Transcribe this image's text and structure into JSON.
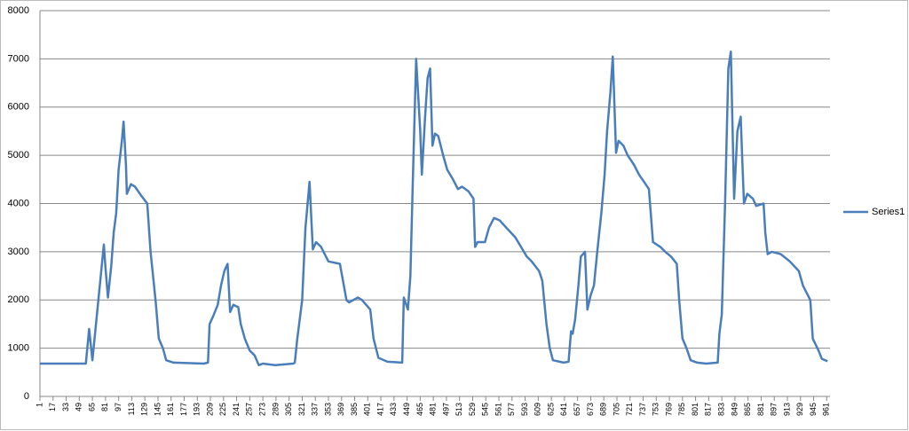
{
  "chart_data": {
    "type": "line",
    "x": [
      1,
      57,
      61,
      65,
      79,
      81,
      84,
      88,
      91,
      94,
      97,
      101,
      103,
      106,
      107,
      112,
      117,
      123,
      132,
      136,
      142,
      146,
      151,
      155,
      164,
      201,
      206,
      208,
      212,
      218,
      222,
      226,
      230,
      233,
      237,
      243,
      246,
      251,
      257,
      263,
      268,
      273,
      288,
      310,
      312,
      315,
      321,
      325,
      330,
      334,
      338,
      344,
      353,
      367,
      375,
      378,
      389,
      394,
      404,
      408,
      414,
      425,
      443,
      445,
      450,
      453,
      456,
      460,
      465,
      467,
      471,
      474,
      477,
      480,
      483,
      487,
      493,
      498,
      505,
      511,
      516,
      524,
      530,
      532,
      535,
      544,
      549,
      555,
      562,
      570,
      581,
      588,
      595,
      601,
      610,
      614,
      619,
      623,
      627,
      640,
      646,
      649,
      651,
      654,
      658,
      661,
      666,
      669,
      673,
      677,
      681,
      686,
      690,
      693,
      697,
      700,
      704,
      707,
      713,
      718,
      726,
      732,
      740,
      744,
      749,
      758,
      764,
      771,
      778,
      781,
      785,
      790,
      795,
      803,
      814,
      828,
      830,
      833,
      837,
      841,
      844,
      848,
      852,
      856,
      858,
      860,
      864,
      871,
      875,
      884,
      886,
      889,
      894,
      905,
      916,
      927,
      932,
      941,
      944,
      951,
      955,
      962
    ],
    "series": [
      {
        "name": "Series1",
        "color": "#4a7ebb",
        "values": [
          680,
          680,
          1400,
          750,
          3150,
          2650,
          2050,
          2700,
          3400,
          3800,
          4700,
          5300,
          5700,
          4800,
          4200,
          4400,
          4350,
          4200,
          4000,
          3000,
          2000,
          1200,
          1000,
          750,
          700,
          680,
          700,
          1500,
          1650,
          1900,
          2300,
          2600,
          2750,
          1750,
          1900,
          1850,
          1500,
          1200,
          950,
          850,
          650,
          680,
          650,
          680,
          700,
          1200,
          2000,
          3500,
          4450,
          3050,
          3200,
          3100,
          2800,
          2750,
          2000,
          1950,
          2050,
          2000,
          1800,
          1200,
          800,
          720,
          700,
          2050,
          1800,
          2500,
          4500,
          7000,
          5500,
          4600,
          5800,
          6600,
          6800,
          5200,
          5450,
          5400,
          5000,
          4700,
          4500,
          4300,
          4350,
          4250,
          4100,
          3100,
          3200,
          3200,
          3500,
          3700,
          3650,
          3500,
          3300,
          3100,
          2900,
          2800,
          2600,
          2400,
          1500,
          1000,
          750,
          700,
          720,
          1350,
          1300,
          1600,
          2300,
          2900,
          3000,
          1800,
          2100,
          2300,
          3000,
          3800,
          4600,
          5500,
          6300,
          7050,
          5050,
          5300,
          5200,
          5000,
          4800,
          4600,
          4400,
          4300,
          3200,
          3100,
          3000,
          2900,
          2750,
          2000,
          1200,
          1000,
          750,
          700,
          680,
          700,
          1300,
          1700,
          4000,
          6800,
          7150,
          4100,
          5500,
          5800,
          4900,
          4000,
          4200,
          4100,
          3950,
          4000,
          3400,
          2950,
          3000,
          2950,
          2800,
          2600,
          2300,
          2000,
          1200,
          950,
          780,
          730
        ]
      }
    ],
    "xlim": [
      1,
      965
    ],
    "xticks": [
      1,
      17,
      33,
      49,
      65,
      81,
      97,
      113,
      129,
      145,
      161,
      177,
      193,
      209,
      225,
      241,
      257,
      273,
      289,
      305,
      321,
      337,
      353,
      369,
      385,
      401,
      417,
      433,
      449,
      465,
      481,
      497,
      513,
      529,
      545,
      561,
      577,
      593,
      609,
      625,
      641,
      657,
      673,
      689,
      705,
      721,
      737,
      753,
      769,
      785,
      801,
      817,
      833,
      849,
      865,
      881,
      897,
      913,
      929,
      945,
      961
    ],
    "ylim": [
      0,
      8000
    ],
    "yticks": [
      0,
      1000,
      2000,
      3000,
      4000,
      5000,
      6000,
      7000,
      8000
    ],
    "grid": true,
    "legend": "right"
  }
}
